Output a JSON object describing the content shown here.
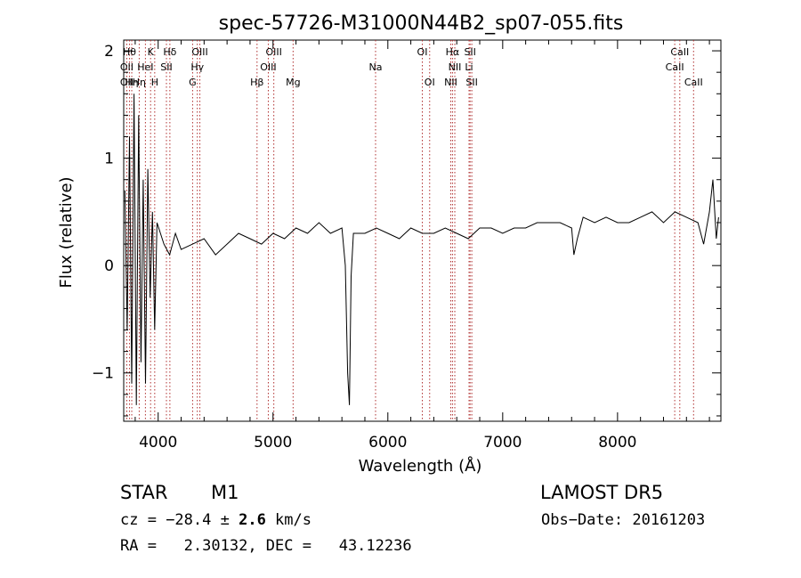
{
  "chart_data": {
    "type": "line",
    "title": "spec-57726-M31000N44B2_sp07-055.fits",
    "xlabel": "Wavelength (Å)",
    "ylabel": "Flux (relative)",
    "xlim": [
      3700,
      8900
    ],
    "ylim": [
      -1.45,
      2.1
    ],
    "xticks": [
      4000,
      5000,
      6000,
      7000,
      8000
    ],
    "xtick_labels": [
      "4000",
      "5000",
      "6000",
      "7000",
      "8000"
    ],
    "yticks": [
      -1,
      0,
      1,
      2
    ],
    "ytick_labels": [
      "−1",
      "0",
      "1",
      "2"
    ],
    "line_color": "#000000",
    "marker_color": "#b03030",
    "grid": false,
    "legend": "none",
    "series": [
      {
        "x": [
          3710,
          3730,
          3750,
          3770,
          3790,
          3810,
          3830,
          3850,
          3870,
          3890,
          3910,
          3930,
          3950,
          3970,
          3990,
          4050,
          4100,
          4150,
          4200,
          4300,
          4400,
          4500,
          4600,
          4700,
          4800,
          4900,
          5000,
          5100,
          5200,
          5300,
          5400,
          5500,
          5600,
          5630,
          5650,
          5665,
          5680,
          5700,
          5800,
          5900,
          6000,
          6100,
          6200,
          6300,
          6400,
          6500,
          6600,
          6700,
          6800,
          6900,
          7000,
          7100,
          7200,
          7300,
          7400,
          7500,
          7600,
          7620,
          7650,
          7700,
          7800,
          7900,
          8000,
          8100,
          8200,
          8300,
          8400,
          8500,
          8600,
          8700,
          8750,
          8800,
          8830,
          8860,
          8880
        ],
        "y": [
          0.7,
          -0.6,
          1.2,
          -1.1,
          1.6,
          -1.3,
          1.4,
          -0.9,
          0.8,
          -1.1,
          0.9,
          -0.3,
          0.5,
          -0.6,
          0.4,
          0.2,
          0.1,
          0.3,
          0.15,
          0.2,
          0.25,
          0.1,
          0.2,
          0.3,
          0.25,
          0.2,
          0.3,
          0.25,
          0.35,
          0.3,
          0.4,
          0.3,
          0.35,
          0.0,
          -1.0,
          -1.3,
          -0.1,
          0.3,
          0.3,
          0.35,
          0.3,
          0.25,
          0.35,
          0.3,
          0.3,
          0.35,
          0.3,
          0.25,
          0.35,
          0.35,
          0.3,
          0.35,
          0.35,
          0.4,
          0.4,
          0.4,
          0.35,
          0.1,
          0.25,
          0.45,
          0.4,
          0.45,
          0.4,
          0.4,
          0.45,
          0.5,
          0.4,
          0.5,
          0.45,
          0.4,
          0.2,
          0.5,
          0.8,
          0.25,
          0.45
        ]
      }
    ],
    "line_markers": [
      {
        "x": 3727,
        "label": "OII",
        "row": 2
      },
      {
        "x": 3727,
        "label": "OII",
        "row": 3
      },
      {
        "x": 3750,
        "label": "Hθ",
        "row": 1
      },
      {
        "x": 3770,
        "label": "Hη",
        "row": 3
      },
      {
        "x": 3835,
        "label": "Hη",
        "row": 3
      },
      {
        "x": 3889,
        "label": "HeI",
        "row": 2
      },
      {
        "x": 3934,
        "label": "K",
        "row": 1
      },
      {
        "x": 3970,
        "label": "H",
        "row": 3
      },
      {
        "x": 4072,
        "label": "SII",
        "row": 2
      },
      {
        "x": 4102,
        "label": "Hδ",
        "row": 1
      },
      {
        "x": 4300,
        "label": "G",
        "row": 3
      },
      {
        "x": 4341,
        "label": "Hγ",
        "row": 2
      },
      {
        "x": 4363,
        "label": "OIII",
        "row": 1
      },
      {
        "x": 4861,
        "label": "Hβ",
        "row": 3
      },
      {
        "x": 4959,
        "label": "OIII",
        "row": 2
      },
      {
        "x": 5007,
        "label": "OIII",
        "row": 1
      },
      {
        "x": 5175,
        "label": "Mg",
        "row": 3
      },
      {
        "x": 5893,
        "label": "Na",
        "row": 2
      },
      {
        "x": 6300,
        "label": "OI",
        "row": 1
      },
      {
        "x": 6364,
        "label": "OI",
        "row": 3
      },
      {
        "x": 6548,
        "label": "NII",
        "row": 3
      },
      {
        "x": 6563,
        "label": "Hα",
        "row": 1
      },
      {
        "x": 6583,
        "label": "NII",
        "row": 2
      },
      {
        "x": 6707,
        "label": "Li",
        "row": 2
      },
      {
        "x": 6716,
        "label": "SII",
        "row": 1
      },
      {
        "x": 6731,
        "label": "SII",
        "row": 3
      },
      {
        "x": 8498,
        "label": "CaII",
        "row": 2
      },
      {
        "x": 8542,
        "label": "CaII",
        "row": 1
      },
      {
        "x": 8662,
        "label": "CaII",
        "row": 3
      }
    ]
  },
  "info": {
    "class_label": "STAR",
    "subclass": "M1",
    "survey": "LAMOST DR5",
    "cz_prefix": "cz = ",
    "cz_value": "−28.4",
    "cz_pm": " ± ",
    "cz_err": "2.6",
    "cz_unit": " km/s",
    "obs_label": "Obs−Date: ",
    "obs_date": "20161203",
    "ra_label": "RA = ",
    "ra_value": "2.30132",
    "dec_label": ", DEC = ",
    "dec_value": "43.12236"
  }
}
